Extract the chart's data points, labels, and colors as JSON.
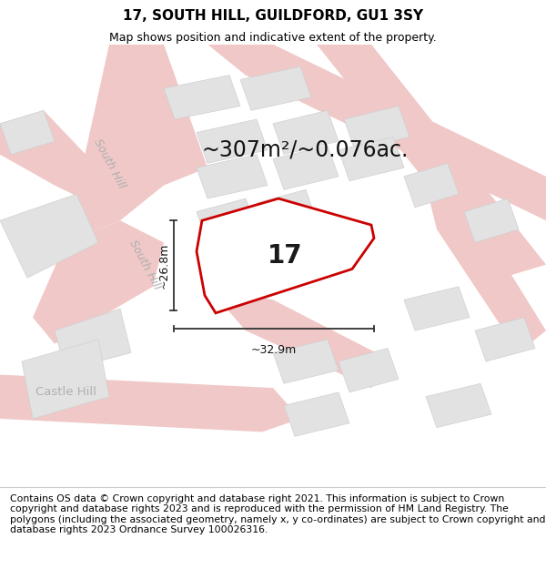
{
  "title": "17, SOUTH HILL, GUILDFORD, GU1 3SY",
  "subtitle": "Map shows position and indicative extent of the property.",
  "area_text": "~307m²/~0.076ac.",
  "width_label": "~32.9m",
  "height_label": "~26.8m",
  "property_number": "17",
  "footer": "Contains OS data © Crown copyright and database right 2021. This information is subject to Crown copyright and database rights 2023 and is reproduced with the permission of HM Land Registry. The polygons (including the associated geometry, namely x, y co-ordinates) are subject to Crown copyright and database rights 2023 Ordnance Survey 100026316.",
  "bg_color": "#ffffff",
  "map_bg": "#f7f7f7",
  "road_color": "#f0c8c8",
  "road_edge": "#e8b0b0",
  "block_color": "#e2e2e2",
  "block_edge": "#d0d0d0",
  "highlight_color": "#cc0000",
  "title_fontsize": 11,
  "subtitle_fontsize": 9,
  "area_fontsize": 17,
  "label_fontsize": 9,
  "footer_fontsize": 7.8,
  "road_label_color": "#b0b0b0",
  "road_label_size": 9
}
